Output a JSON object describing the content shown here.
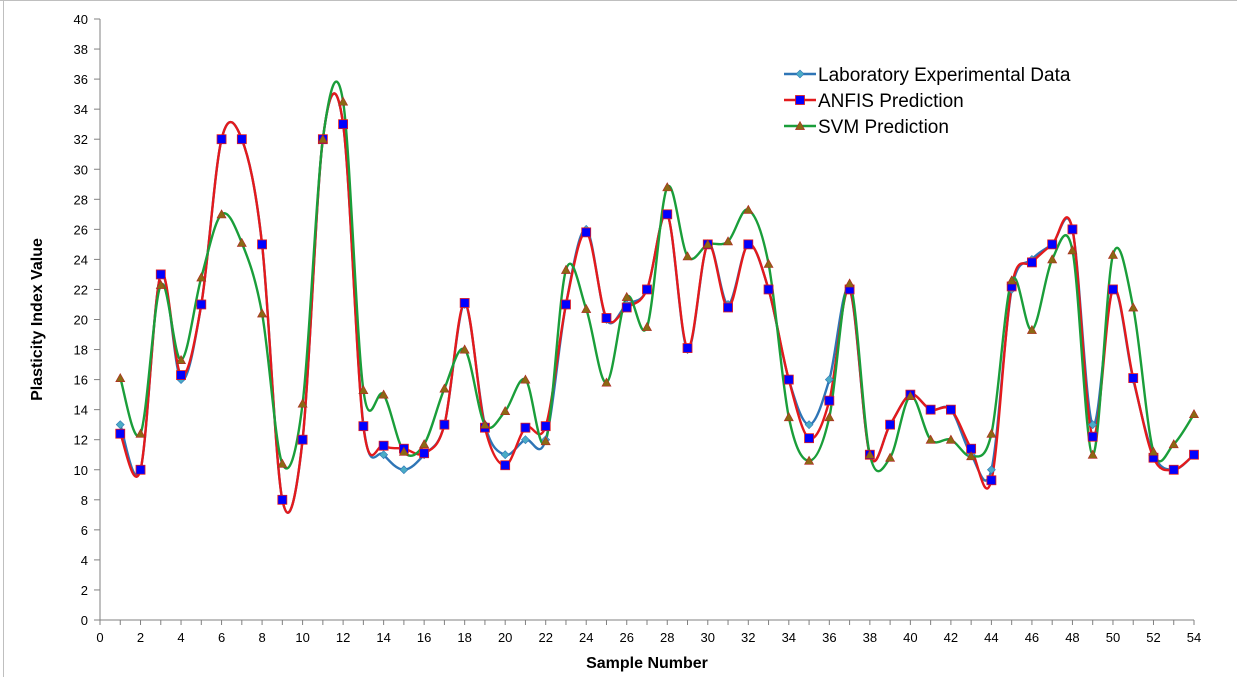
{
  "chart_data": {
    "type": "line",
    "xlabel": "Sample Number",
    "ylabel": "Plasticity Index Value",
    "xlim": [
      0,
      54
    ],
    "ylim": [
      0,
      40
    ],
    "x_ticks": [
      0,
      2,
      4,
      6,
      8,
      10,
      12,
      14,
      16,
      18,
      20,
      22,
      24,
      26,
      28,
      30,
      32,
      34,
      36,
      38,
      40,
      42,
      44,
      46,
      48,
      50,
      52,
      54
    ],
    "y_ticks": [
      0,
      2,
      4,
      6,
      8,
      10,
      12,
      14,
      16,
      18,
      20,
      22,
      24,
      26,
      28,
      30,
      32,
      34,
      36,
      38,
      40
    ],
    "x": [
      1,
      2,
      3,
      4,
      5,
      6,
      7,
      8,
      9,
      10,
      11,
      12,
      13,
      14,
      15,
      16,
      17,
      18,
      19,
      20,
      21,
      22,
      23,
      24,
      25,
      26,
      27,
      28,
      29,
      30,
      31,
      32,
      33,
      34,
      35,
      36,
      37,
      38,
      39,
      40,
      41,
      42,
      43,
      44,
      45,
      46,
      47,
      48,
      49,
      50,
      51,
      52,
      53,
      54
    ],
    "legend_position": "top-right",
    "grid": false,
    "series": [
      {
        "name": "Laboratory Experimental Data",
        "color": "#2E75B6",
        "marker": "diamond",
        "marker_color": "#4BACC6",
        "values": [
          13,
          10,
          23,
          16,
          21,
          32,
          32,
          25,
          8,
          12,
          32,
          33,
          13,
          11,
          10,
          11,
          13,
          21,
          13,
          11,
          12,
          12,
          21,
          26,
          20,
          21,
          22,
          27,
          18,
          25,
          21,
          25,
          22,
          16,
          13,
          16,
          22,
          11,
          13,
          15,
          14,
          14,
          11,
          10,
          22,
          24,
          25,
          26,
          13,
          22,
          16,
          11,
          10,
          11
        ]
      },
      {
        "name": "ANFIS Prediction",
        "color": "#E31A1C",
        "marker": "square",
        "marker_color": "#0000FF",
        "values": [
          12.4,
          10,
          23,
          16.3,
          21,
          32,
          32,
          25,
          8,
          12,
          32,
          33,
          12.9,
          11.6,
          11.4,
          11.1,
          13,
          21.1,
          12.8,
          10.3,
          12.8,
          12.9,
          21,
          25.8,
          20.1,
          20.8,
          22,
          27,
          18.1,
          25,
          20.8,
          25,
          22,
          16,
          12.1,
          14.6,
          22,
          11,
          13,
          15,
          14,
          14,
          11.4,
          9.3,
          22.2,
          23.8,
          25,
          26,
          12.2,
          22,
          16.1,
          10.8,
          10,
          11
        ]
      },
      {
        "name": "SVM Prediction",
        "color": "#1A9E3A",
        "marker": "triangle",
        "marker_color": "#8B6914",
        "values": [
          16.1,
          12.4,
          22.3,
          17.3,
          22.8,
          27,
          25.1,
          20.4,
          10.4,
          14.4,
          32,
          34.5,
          15.3,
          15,
          11.2,
          11.7,
          15.4,
          18,
          13,
          13.9,
          16,
          11.9,
          23.3,
          20.7,
          15.8,
          21.5,
          19.5,
          28.8,
          24.2,
          25,
          25.2,
          27.3,
          23.7,
          13.5,
          10.6,
          13.5,
          22.4,
          11,
          10.8,
          14.9,
          12,
          12,
          10.9,
          12.4,
          22.6,
          19.3,
          24,
          24.6,
          11,
          24.3,
          20.8,
          11.2,
          11.7,
          13.7
        ]
      }
    ]
  }
}
